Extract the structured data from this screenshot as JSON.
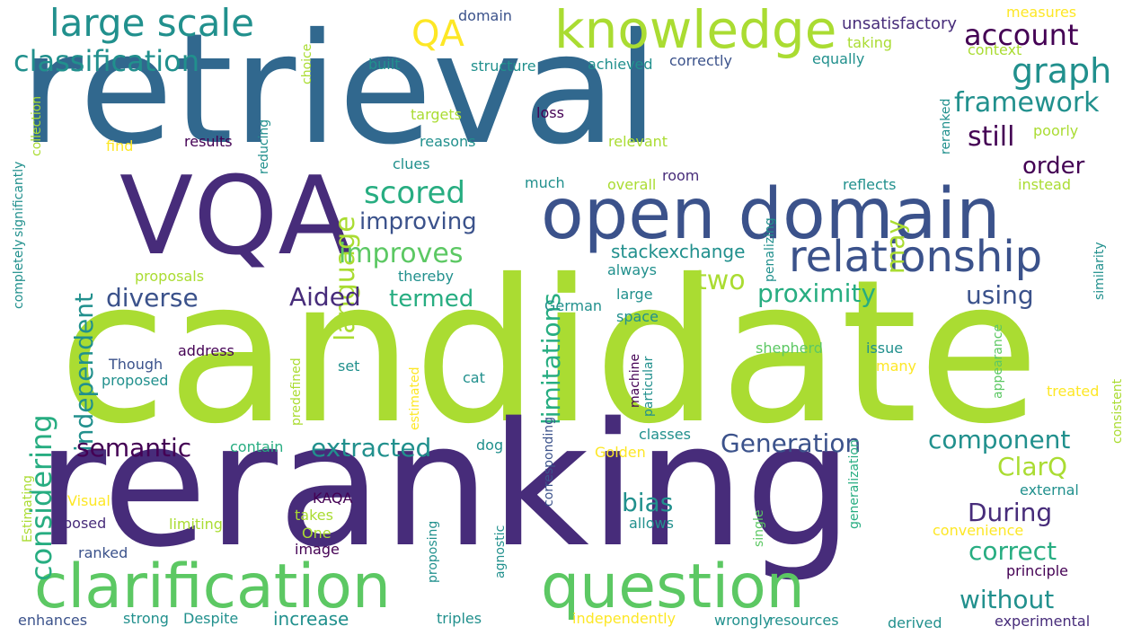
{
  "colors": {
    "background": "#ffffff",
    "purple": "#472c7a",
    "dark_purple": "#440154",
    "indigo": "#3b528b",
    "blue": "#31688e",
    "teal_blue": "#2c728e",
    "teal": "#21908d",
    "sea_green": "#27ad81",
    "green": "#5cc863",
    "lime": "#aadc32",
    "yellow": "#fde725"
  },
  "words": [
    "retrieval",
    "candidate",
    "reranking",
    "VQA",
    "open domain",
    "knowledge",
    "clarification",
    "question",
    "relationship",
    "large scale",
    "classification",
    "graph",
    "framework",
    "QA",
    "account",
    "language",
    "may",
    "still",
    "order",
    "considering",
    "scored",
    "improving",
    "independent",
    "improves",
    "diverse",
    "two",
    "proximity",
    "using",
    "Aided",
    "termed",
    "semantic",
    "extracted",
    "Generation",
    "component",
    "limitations",
    "ClarQ",
    "During",
    "bias",
    "correct",
    "without",
    "stackexchange",
    "unsatisfactory",
    "measures",
    "taking",
    "context",
    "domain",
    "structure",
    "achieved",
    "correctly",
    "equally",
    "built",
    "choice",
    "collection",
    "targets",
    "loss",
    "relevant",
    "reasons",
    "results",
    "find",
    "reranked",
    "poorly",
    "clues",
    "much",
    "overall",
    "room",
    "reflects",
    "instead",
    "reducing",
    "thereby",
    "always",
    "proposals",
    "penalizing",
    "similarity",
    "significantly",
    "completely",
    "German",
    "large",
    "space",
    "address",
    "Though",
    "proposed",
    "machine",
    "shepherd",
    "issue",
    "many",
    "set",
    "cat",
    "particular",
    "predefined",
    "estimated",
    "appearance",
    "consistent",
    "treated",
    "contain",
    "classes",
    "dog",
    "Golden",
    "generalization",
    "Estimating",
    "Visual",
    "KAQA",
    "single",
    "external",
    "posed",
    "limiting",
    "takes",
    "One",
    "image",
    "agnostic",
    "proposing",
    "corresponding",
    "allows",
    "convenience",
    "ranked",
    "principle",
    "enhances",
    "strong",
    "Despite",
    "increase",
    "triples",
    "independently",
    "wrongly",
    "resources",
    "derived",
    "experimental"
  ]
}
